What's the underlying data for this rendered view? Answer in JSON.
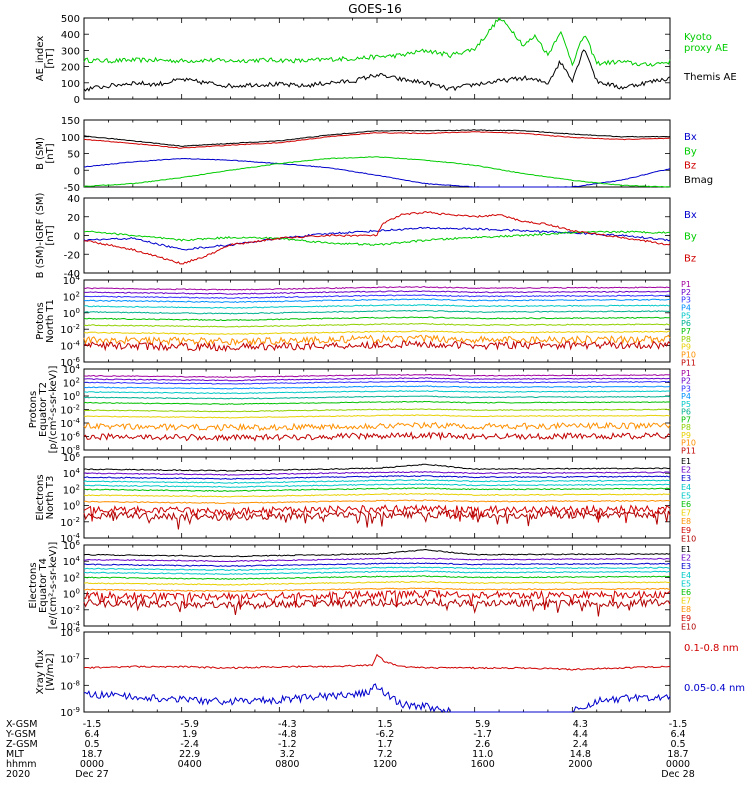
{
  "chart_data": {
    "type": "line",
    "title": "GOES-16",
    "colors": {
      "black": "#000000",
      "red": "#d00000",
      "green": "#00cc00",
      "blue": "#0000cc",
      "p_magenta": "#a000a0",
      "p_purple": "#6a00c8",
      "p_indigo": "#3030ff",
      "p_azure": "#0090ff",
      "p_cyan": "#00c8c8",
      "p_teal": "#00b090",
      "p_green": "#00c000",
      "p_lime": "#90d000",
      "p_yellow": "#e8d000",
      "p_orange": "#ff9000",
      "p_red": "#c00000",
      "p_darkred": "#b00000"
    },
    "panels": [
      {
        "ylabel": [
          "AE_index",
          "[nT]"
        ],
        "ylim": [
          0,
          500
        ],
        "yticks": [
          "500",
          "400",
          "300",
          "200",
          "100",
          "0"
        ],
        "legend": [
          {
            "lines": [
              "Kyoto",
              "proxy AE"
            ],
            "color": "#00cc00"
          },
          {
            "lines": [
              "Themis AE"
            ],
            "color": "#000000"
          }
        ],
        "series": [
          {
            "name": "Kyoto proxy AE",
            "color": "#00cc00",
            "x": [
              0,
              1,
              2,
              3,
              4,
              5,
              6,
              7,
              8,
              9,
              10,
              11,
              12,
              13,
              14,
              15,
              16,
              16.5,
              17,
              17.5,
              18,
              18.5,
              19,
              19.5,
              20,
              20.5,
              21,
              22,
              23,
              24
            ],
            "y": [
              240,
              235,
              240,
              240,
              235,
              240,
              235,
              240,
              240,
              235,
              245,
              250,
              260,
              270,
              300,
              270,
              310,
              400,
              500,
              430,
              330,
              390,
              270,
              420,
              220,
              400,
              220,
              230,
              210,
              230
            ]
          },
          {
            "name": "Themis AE",
            "color": "#000000",
            "x": [
              0,
              1,
              2,
              3,
              4,
              5,
              6,
              7,
              8,
              9,
              10,
              11,
              12,
              13,
              14,
              15,
              16,
              17,
              18,
              19,
              19.5,
              20,
              20.5,
              21,
              22,
              23,
              24
            ],
            "y": [
              60,
              80,
              100,
              90,
              120,
              100,
              80,
              90,
              90,
              80,
              100,
              110,
              150,
              120,
              100,
              60,
              90,
              110,
              130,
              100,
              230,
              120,
              320,
              110,
              70,
              100,
              130
            ]
          }
        ]
      },
      {
        "ylabel": [
          "B (SM)",
          "[nT]"
        ],
        "ylim": [
          -50,
          150
        ],
        "yticks": [
          "150",
          "100",
          "50",
          "0",
          "-50"
        ],
        "legend": [
          {
            "lines": [
              "Bx"
            ],
            "color": "#0000cc"
          },
          {
            "lines": [
              "By"
            ],
            "color": "#00cc00"
          },
          {
            "lines": [
              "Bz"
            ],
            "color": "#d00000"
          },
          {
            "lines": [
              "Bmag"
            ],
            "color": "#000000"
          }
        ],
        "series": [
          {
            "name": "Bx",
            "color": "#0000cc",
            "x": [
              0,
              2,
              4,
              6,
              8,
              10,
              12,
              14,
              16,
              18,
              20,
              22,
              24
            ],
            "y": [
              10,
              25,
              35,
              30,
              20,
              8,
              -15,
              -40,
              -50,
              -52,
              -50,
              -30,
              5
            ]
          },
          {
            "name": "By",
            "color": "#00cc00",
            "x": [
              0,
              2,
              4,
              6,
              8,
              10,
              12,
              14,
              16,
              18,
              20,
              22,
              24
            ],
            "y": [
              -48,
              -40,
              -22,
              0,
              20,
              35,
              40,
              30,
              15,
              -10,
              -30,
              -45,
              -50
            ]
          },
          {
            "name": "Bz",
            "color": "#d00000",
            "x": [
              0,
              2,
              4,
              6,
              8,
              10,
              12,
              14,
              16,
              18,
              20,
              22,
              24
            ],
            "y": [
              92,
              80,
              66,
              75,
              82,
              100,
              112,
              110,
              115,
              110,
              98,
              92,
              95
            ]
          },
          {
            "name": "Bmag",
            "color": "#000000",
            "x": [
              0,
              2,
              4,
              6,
              8,
              10,
              12,
              14,
              16,
              18,
              20,
              22,
              24
            ],
            "y": [
              102,
              88,
              72,
              80,
              88,
              105,
              118,
              118,
              120,
              118,
              108,
              100,
              100
            ]
          }
        ]
      },
      {
        "ylabel": [
          "B (SM)-IGRF (SM)",
          "[nT]"
        ],
        "ylim": [
          -40,
          40
        ],
        "yticks": [
          "40",
          "20",
          "0",
          "-20",
          "-40"
        ],
        "legend": [
          {
            "lines": [
              "Bx"
            ],
            "color": "#0000cc"
          },
          {
            "lines": [
              "By"
            ],
            "color": "#00cc00"
          },
          {
            "lines": [
              "Bz"
            ],
            "color": "#d00000"
          }
        ],
        "series": [
          {
            "name": "Bx",
            "color": "#0000cc",
            "x": [
              0,
              2,
              4,
              6,
              8,
              10,
              12,
              14,
              16,
              18,
              20,
              22,
              24
            ],
            "y": [
              -5,
              -3,
              -15,
              -10,
              -3,
              2,
              5,
              8,
              7,
              5,
              3,
              0,
              -5
            ]
          },
          {
            "name": "By",
            "color": "#00cc00",
            "x": [
              0,
              2,
              4,
              6,
              8,
              10,
              12,
              14,
              16,
              18,
              20,
              22,
              24
            ],
            "y": [
              5,
              0,
              -5,
              -2,
              -3,
              -8,
              -10,
              -5,
              -2,
              0,
              3,
              4,
              3
            ]
          },
          {
            "name": "Bz",
            "color": "#d00000",
            "x": [
              0,
              2,
              4,
              5,
              6,
              8,
              10,
              12,
              12.2,
              13,
              14,
              15,
              16,
              17,
              18,
              19,
              20,
              22,
              24
            ],
            "y": [
              -5,
              -15,
              -30,
              -22,
              -10,
              -3,
              0,
              0,
              12,
              22,
              25,
              22,
              20,
              22,
              15,
              12,
              5,
              -2,
              -10
            ]
          }
        ]
      },
      {
        "ylabel": [
          "Protons",
          "North T1"
        ],
        "log": true,
        "ylim": [
          -6,
          4
        ],
        "yticks": [
          "10^4",
          "10^2",
          "10^0",
          "10^-2",
          "10^-4",
          "10^-6"
        ],
        "legend_labels": [
          "P1",
          "P2",
          "P3",
          "P4",
          "P5",
          "P6",
          "P7",
          "P8",
          "P9",
          "P10",
          "P11"
        ],
        "levels": [
          3.0,
          2.5,
          2.0,
          1.5,
          0.8,
          0.1,
          -0.7,
          -1.5,
          -2.4,
          -3.3,
          -4.0
        ],
        "colors": [
          "#a000a0",
          "#6a00c8",
          "#3030ff",
          "#0090ff",
          "#00c8c8",
          "#00b090",
          "#00c000",
          "#90d000",
          "#e8d000",
          "#ff9000",
          "#c00000"
        ]
      },
      {
        "ylabel": [
          "Protons",
          "Equator T2",
          "[p/(cm²-s-sr-keV)]"
        ],
        "log": true,
        "ylim": [
          -8,
          4
        ],
        "yticks": [
          "10^4",
          "10^2",
          "10^0",
          "10^-2",
          "10^-4",
          "10^-6",
          "10^-8"
        ],
        "legend_labels": [
          "P1",
          "P2",
          "P3",
          "P4",
          "P5",
          "P6",
          "P7",
          "P8",
          "P9",
          "P10",
          "P11"
        ],
        "levels": [
          3.0,
          2.5,
          2.0,
          1.3,
          0.6,
          -0.2,
          -1.0,
          -2.1,
          -3.0,
          -4.5,
          -6.0
        ],
        "colors": [
          "#a000a0",
          "#6a00c8",
          "#3030ff",
          "#0090ff",
          "#00c8c8",
          "#00b090",
          "#00c000",
          "#90d000",
          "#e8d000",
          "#ff9000",
          "#c00000"
        ]
      },
      {
        "ylabel": [
          "Electrons",
          "North T3"
        ],
        "log": true,
        "ylim": [
          -4,
          6
        ],
        "yticks": [
          "10^6",
          "10^4",
          "10^2",
          "10^0",
          "10^-2",
          "10^-4"
        ],
        "legend_labels": [
          "E1",
          "E2",
          "E3",
          "E4",
          "E5",
          "E6",
          "E7",
          "E8",
          "E9",
          "E10"
        ],
        "levels": [
          4.5,
          4.0,
          3.5,
          3.0,
          2.5,
          2.0,
          1.3,
          0.5,
          -0.5,
          -1.2
        ],
        "colors": [
          "#000000",
          "#6a00c8",
          "#0000cc",
          "#00c8c8",
          "#00c8c8",
          "#00c000",
          "#e8d000",
          "#ff9000",
          "#d00000",
          "#b00000"
        ]
      },
      {
        "ylabel": [
          "Electrons",
          "Equator T4",
          "[e/(cm²-s-sr-keV)]"
        ],
        "log": true,
        "ylim": [
          -4,
          6
        ],
        "yticks": [
          "10^6",
          "10^4",
          "10^2",
          "10^0",
          "10^-2",
          "10^-4"
        ],
        "legend_labels": [
          "E1",
          "E2",
          "E3",
          "E4",
          "E5",
          "E6",
          "E7",
          "E8",
          "E9",
          "E10"
        ],
        "levels": [
          4.8,
          4.2,
          3.6,
          3.1,
          2.6,
          2.0,
          1.3,
          0.5,
          -0.2,
          -1.2
        ],
        "colors": [
          "#000000",
          "#6a00c8",
          "#0000cc",
          "#00c8c8",
          "#00c8c8",
          "#00c000",
          "#e8d000",
          "#ff9000",
          "#d00000",
          "#b00000"
        ]
      },
      {
        "ylabel": [
          "Xray flux",
          "[W/m2]"
        ],
        "log": true,
        "ylim": [
          -9,
          -6
        ],
        "yticks": [
          "10^-6",
          "10^-7",
          "10^-8",
          "10^-9"
        ],
        "legend": [
          {
            "lines": [
              "0.1-0.8 nm"
            ],
            "color": "#d00000"
          },
          {
            "lines": [
              "0.05-0.4 nm"
            ],
            "color": "#0000cc"
          }
        ],
        "series": [
          {
            "name": "0.1-0.8 nm",
            "color": "#d00000",
            "x": [
              0,
              2,
              4,
              6,
              8,
              10,
              11.8,
              12,
              12.3,
              13,
              14,
              16,
              18,
              20,
              22,
              24
            ],
            "y": [
              -7.35,
              -7.3,
              -7.3,
              -7.35,
              -7.3,
              -7.3,
              -7.25,
              -6.85,
              -7.1,
              -7.3,
              -7.35,
              -7.35,
              -7.35,
              -7.4,
              -7.35,
              -7.3
            ]
          },
          {
            "name": "0.05-0.4 nm",
            "color": "#0000cc",
            "x": [
              0,
              2,
              4,
              6,
              8,
              10,
              11.5,
              12,
              12.5,
              13,
              14,
              15,
              15.5,
              19,
              20,
              21,
              22,
              24
            ],
            "y": [
              -8.35,
              -8.4,
              -8.55,
              -8.6,
              -8.55,
              -8.4,
              -8.3,
              -8.05,
              -8.4,
              -8.7,
              -8.8,
              -9.0,
              -9.5,
              -9.5,
              -9.0,
              -8.6,
              -8.5,
              -8.4
            ]
          }
        ]
      }
    ],
    "footer": {
      "row_labels": [
        "X-GSM",
        "Y-GSM",
        "Z-GSM",
        "MLT",
        "hhmm",
        "2020"
      ],
      "columns": [
        {
          "values": [
            "-1.5",
            "6.4",
            "0.5",
            "18.7",
            "0000",
            "Dec 27"
          ]
        },
        {
          "values": [
            "-5.9",
            "1.9",
            "-2.4",
            "22.9",
            "0400",
            ""
          ]
        },
        {
          "values": [
            "-4.3",
            "-4.8",
            "-1.2",
            "3.2",
            "0800",
            ""
          ]
        },
        {
          "values": [
            "1.5",
            "-6.2",
            "1.7",
            "7.2",
            "1200",
            ""
          ]
        },
        {
          "values": [
            "5.9",
            "-1.7",
            "2.6",
            "11.0",
            "1600",
            ""
          ]
        },
        {
          "values": [
            "4.3",
            "4.4",
            "2.4",
            "14.8",
            "2000",
            ""
          ]
        },
        {
          "values": [
            "-1.5",
            "6.4",
            "0.5",
            "18.7",
            "0000",
            "Dec 28"
          ]
        }
      ]
    },
    "xlim": [
      0,
      24
    ],
    "xlabel": "hhmm"
  }
}
